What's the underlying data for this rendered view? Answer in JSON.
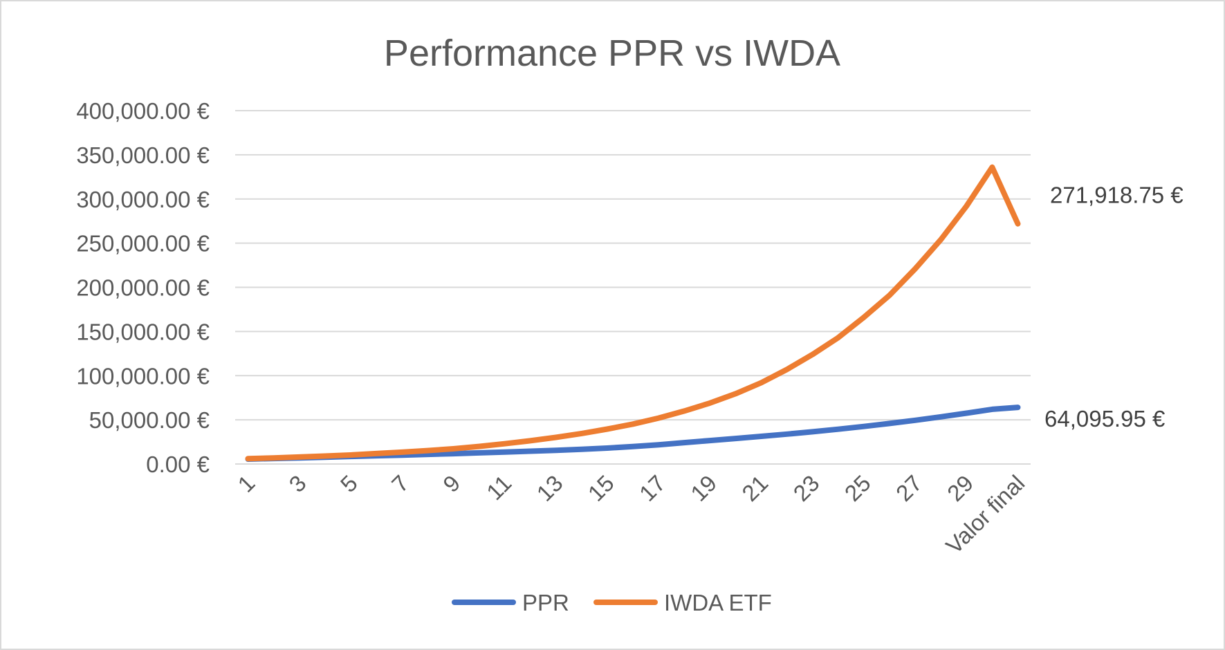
{
  "chart_data": {
    "type": "line",
    "title": "Performance PPR vs IWDA",
    "xlabel": "",
    "ylabel": "",
    "categories": [
      "1",
      "2",
      "3",
      "4",
      "5",
      "6",
      "7",
      "8",
      "9",
      "10",
      "11",
      "12",
      "13",
      "14",
      "15",
      "16",
      "17",
      "18",
      "19",
      "20",
      "21",
      "22",
      "23",
      "24",
      "25",
      "26",
      "27",
      "28",
      "29",
      "30",
      "Valor final"
    ],
    "category_ticks": [
      "1",
      "3",
      "5",
      "7",
      "9",
      "11",
      "13",
      "15",
      "17",
      "19",
      "21",
      "23",
      "25",
      "27",
      "29",
      "Valor final"
    ],
    "yticks": [
      "0.00 €",
      "50,000.00 €",
      "100,000.00 €",
      "150,000.00 €",
      "200,000.00 €",
      "250,000.00 €",
      "300,000.00 €",
      "350,000.00 €",
      "400,000.00 €"
    ],
    "ylim": [
      0,
      400000
    ],
    "grid": true,
    "legend_position": "bottom",
    "series": [
      {
        "name": "PPR",
        "color": "#4472c4",
        "values": [
          5500,
          6200,
          6900,
          7700,
          8500,
          9300,
          10000,
          10900,
          11700,
          12600,
          13500,
          14500,
          15500,
          16600,
          18000,
          19800,
          21800,
          24200,
          26500,
          28900,
          31300,
          33800,
          36500,
          39400,
          42500,
          45900,
          49500,
          53400,
          57500,
          61900,
          64095.95
        ],
        "final_label": "64,095.95 €"
      },
      {
        "name": "IWDA ETF",
        "color": "#ed7d31",
        "values": [
          6000,
          6900,
          7900,
          9000,
          10200,
          11800,
          13400,
          15200,
          17200,
          19900,
          22900,
          26300,
          30100,
          34500,
          39500,
          45200,
          52000,
          60000,
          69000,
          79500,
          92000,
          107000,
          124000,
          143000,
          166000,
          191000,
          221000,
          254000,
          292000,
          336000,
          271918.75
        ],
        "final_label": "271,918.75 €"
      }
    ]
  }
}
